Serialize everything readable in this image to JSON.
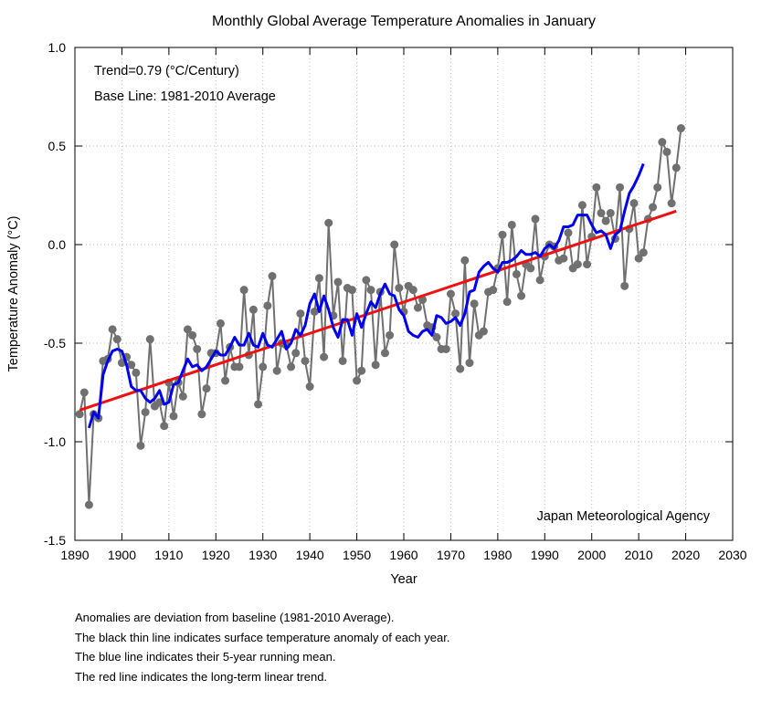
{
  "chart_data": {
    "type": "line",
    "title": "Monthly Global Average Temperature Anomalies in January",
    "xlabel": "Year",
    "ylabel": "Temperature Anomaly (°C)",
    "xlim": [
      1890,
      2030
    ],
    "ylim": [
      -1.5,
      1.0
    ],
    "xticks": [
      "1890",
      "1900",
      "1910",
      "1920",
      "1930",
      "1940",
      "1950",
      "1960",
      "1970",
      "1980",
      "1990",
      "2000",
      "2010",
      "2020",
      "2030"
    ],
    "yticks": [
      "-1.5",
      "-1.0",
      "-0.5",
      "0.0",
      "0.5",
      "1.0"
    ],
    "grid": true,
    "annotations": {
      "trend": "Trend=0.79 (°C/Century)",
      "baseline": "Base Line: 1981-2010 Average",
      "source": "Japan Meteorological Agency"
    },
    "colors": {
      "annual": "#707070",
      "running_mean": "#0000ee",
      "trend": "#ee1111",
      "grid": "#bbbbbb"
    },
    "series": [
      {
        "role": "annual",
        "x_start": 1891,
        "values": [
          -0.86,
          -0.75,
          -1.32,
          -0.86,
          -0.88,
          -0.59,
          -0.58,
          -0.43,
          -0.48,
          -0.6,
          -0.57,
          -0.61,
          -0.65,
          -1.02,
          -0.85,
          -0.48,
          -0.82,
          -0.8,
          -0.92,
          -0.7,
          -0.87,
          -0.7,
          -0.77,
          -0.43,
          -0.46,
          -0.53,
          -0.86,
          -0.73,
          -0.55,
          -0.55,
          -0.4,
          -0.69,
          -0.52,
          -0.62,
          -0.62,
          -0.23,
          -0.56,
          -0.33,
          -0.81,
          -0.62,
          -0.31,
          -0.16,
          -0.64,
          -0.5,
          -0.51,
          -0.62,
          -0.55,
          -0.35,
          -0.59,
          -0.72,
          -0.34,
          -0.17,
          -0.57,
          0.11,
          -0.36,
          -0.19,
          -0.59,
          -0.22,
          -0.23,
          -0.69,
          -0.64,
          -0.18,
          -0.23,
          -0.61,
          -0.24,
          -0.55,
          -0.46,
          0.0,
          -0.22,
          -0.34,
          -0.21,
          -0.23,
          -0.32,
          -0.28,
          -0.41,
          -0.42,
          -0.47,
          -0.53,
          -0.53,
          -0.25,
          -0.35,
          -0.63,
          -0.08,
          -0.6,
          -0.3,
          -0.46,
          -0.44,
          -0.24,
          -0.23,
          -0.12,
          0.05,
          -0.29,
          0.1,
          -0.15,
          -0.26,
          -0.1,
          -0.12,
          0.13,
          -0.18,
          -0.06,
          0.0,
          -0.01,
          -0.08,
          -0.07,
          0.06,
          -0.12,
          -0.1,
          0.2,
          -0.1,
          0.04,
          0.29,
          0.16,
          0.12,
          0.16,
          0.03,
          0.29,
          -0.21,
          0.08,
          0.21,
          -0.07,
          -0.04,
          0.13,
          0.19,
          0.29,
          0.52,
          0.47,
          0.21,
          0.39,
          0.59
        ]
      },
      {
        "role": "running_mean",
        "x_start": 1893,
        "values": [
          -0.93,
          -0.85,
          -0.88,
          -0.66,
          -0.59,
          -0.54,
          -0.53,
          -0.54,
          -0.61,
          -0.72,
          -0.74,
          -0.74,
          -0.78,
          -0.8,
          -0.78,
          -0.74,
          -0.81,
          -0.8,
          -0.71,
          -0.7,
          -0.64,
          -0.58,
          -0.62,
          -0.61,
          -0.64,
          -0.62,
          -0.58,
          -0.54,
          -0.56,
          -0.56,
          -0.52,
          -0.47,
          -0.51,
          -0.51,
          -0.45,
          -0.51,
          -0.52,
          -0.45,
          -0.51,
          -0.52,
          -0.48,
          -0.44,
          -0.53,
          -0.5,
          -0.43,
          -0.46,
          -0.41,
          -0.3,
          -0.25,
          -0.34,
          -0.26,
          -0.33,
          -0.42,
          -0.47,
          -0.38,
          -0.38,
          -0.46,
          -0.35,
          -0.42,
          -0.35,
          -0.29,
          -0.32,
          -0.25,
          -0.2,
          -0.25,
          -0.26,
          -0.33,
          -0.36,
          -0.44,
          -0.46,
          -0.47,
          -0.44,
          -0.43,
          -0.46,
          -0.36,
          -0.37,
          -0.4,
          -0.39,
          -0.37,
          -0.41,
          -0.35,
          -0.24,
          -0.23,
          -0.14,
          -0.11,
          -0.09,
          -0.12,
          -0.14,
          -0.09,
          -0.09,
          -0.08,
          -0.06,
          -0.03,
          -0.05,
          -0.05,
          -0.04,
          -0.06,
          -0.02,
          0.0,
          -0.02,
          0.02,
          0.09,
          0.09,
          0.1,
          0.15,
          0.15,
          0.15,
          0.1,
          0.06,
          0.07,
          0.05,
          -0.02,
          0.05,
          0.07,
          0.17,
          0.26,
          0.3,
          0.35,
          0.41
        ]
      },
      {
        "role": "trend",
        "x": [
          1891,
          2018
        ],
        "values": [
          -0.84,
          0.17
        ]
      }
    ]
  },
  "notes": [
    "Anomalies are deviation from baseline (1981-2010 Average).",
    "The black thin line indicates surface temperature anomaly of each year.",
    "The blue line indicates their 5-year running mean.",
    "The red line indicates the long-term linear trend."
  ]
}
